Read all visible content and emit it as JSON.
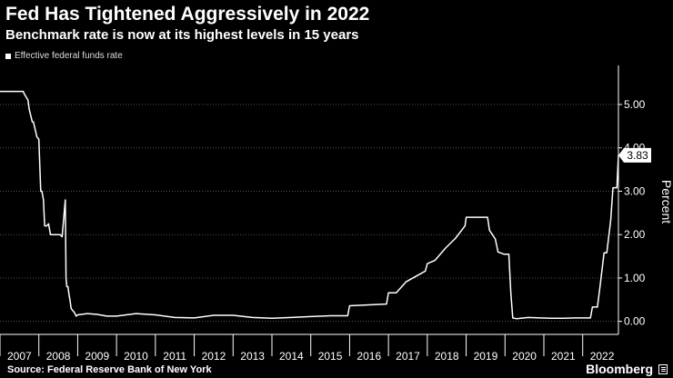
{
  "header": {
    "title": "Fed Has Tightened Aggressively in 2022",
    "subtitle": "Benchmark rate is now at its highest levels in 15 years"
  },
  "footer": {
    "source": "Source: Federal Reserve Bank of New York",
    "brand": "Bloomberg"
  },
  "chart_data": {
    "type": "line",
    "ylabel": "Percent",
    "ylim": [
      -0.3,
      5.9
    ],
    "yticks": [
      "0.00",
      "1.00",
      "2.00",
      "3.00",
      "4.00",
      "5.00"
    ],
    "ytick_values": [
      0,
      1,
      2,
      3,
      4,
      5
    ],
    "xlim": [
      2007.0,
      2022.92
    ],
    "xticks": [
      "2007",
      "2008",
      "2009",
      "2010",
      "2011",
      "2012",
      "2013",
      "2014",
      "2015",
      "2016",
      "2017",
      "2018",
      "2019",
      "2020",
      "2021",
      "2022"
    ],
    "grid": "horizontal dotted",
    "legend_position": "top-left",
    "colors": {
      "line": "#ffffff",
      "grid": "#555555",
      "background": "#000000"
    },
    "last_value_label": "3.83",
    "series": [
      {
        "name": "Effective federal funds rate",
        "x": [
          2007.0,
          2007.6,
          2007.62,
          2007.72,
          2007.75,
          2007.83,
          2007.86,
          2007.95,
          2008.0,
          2008.05,
          2008.08,
          2008.12,
          2008.15,
          2008.2,
          2008.25,
          2008.3,
          2008.35,
          2008.4,
          2008.45,
          2008.5,
          2008.55,
          2008.6,
          2008.68,
          2008.7,
          2008.72,
          2008.75,
          2008.78,
          2008.8,
          2008.83,
          2008.87,
          2008.92,
          2008.96,
          2009.0,
          2009.25,
          2009.5,
          2009.75,
          2010.0,
          2010.5,
          2011.0,
          2011.5,
          2012.0,
          2012.5,
          2013.0,
          2013.5,
          2014.0,
          2014.5,
          2015.0,
          2015.5,
          2015.95,
          2016.0,
          2016.5,
          2016.95,
          2017.0,
          2017.2,
          2017.45,
          2017.95,
          2018.0,
          2018.2,
          2018.47,
          2018.72,
          2018.97,
          2019.0,
          2019.3,
          2019.55,
          2019.6,
          2019.75,
          2019.82,
          2019.97,
          2020.1,
          2020.15,
          2020.2,
          2020.3,
          2020.6,
          2020.9,
          2021.2,
          2021.5,
          2021.8,
          2022.0,
          2022.2,
          2022.25,
          2022.38,
          2022.45,
          2022.55,
          2022.62,
          2022.72,
          2022.78,
          2022.88,
          2022.92
        ],
        "y": [
          5.3,
          5.3,
          5.25,
          5.1,
          4.9,
          4.6,
          4.6,
          4.25,
          4.2,
          3.0,
          3.0,
          2.8,
          2.2,
          2.2,
          2.25,
          2.0,
          2.0,
          2.0,
          2.0,
          2.0,
          2.0,
          1.95,
          2.8,
          1.0,
          0.8,
          0.8,
          0.6,
          0.5,
          0.3,
          0.25,
          0.2,
          0.12,
          0.15,
          0.18,
          0.16,
          0.12,
          0.12,
          0.18,
          0.15,
          0.09,
          0.08,
          0.14,
          0.14,
          0.09,
          0.07,
          0.09,
          0.11,
          0.13,
          0.13,
          0.36,
          0.38,
          0.4,
          0.66,
          0.66,
          0.91,
          1.16,
          1.33,
          1.41,
          1.69,
          1.91,
          2.2,
          2.4,
          2.4,
          2.4,
          2.1,
          1.9,
          1.6,
          1.55,
          1.55,
          0.65,
          0.08,
          0.06,
          0.09,
          0.08,
          0.07,
          0.07,
          0.08,
          0.08,
          0.08,
          0.33,
          0.33,
          0.83,
          1.58,
          1.58,
          2.33,
          3.08,
          3.08,
          3.83
        ]
      }
    ]
  }
}
